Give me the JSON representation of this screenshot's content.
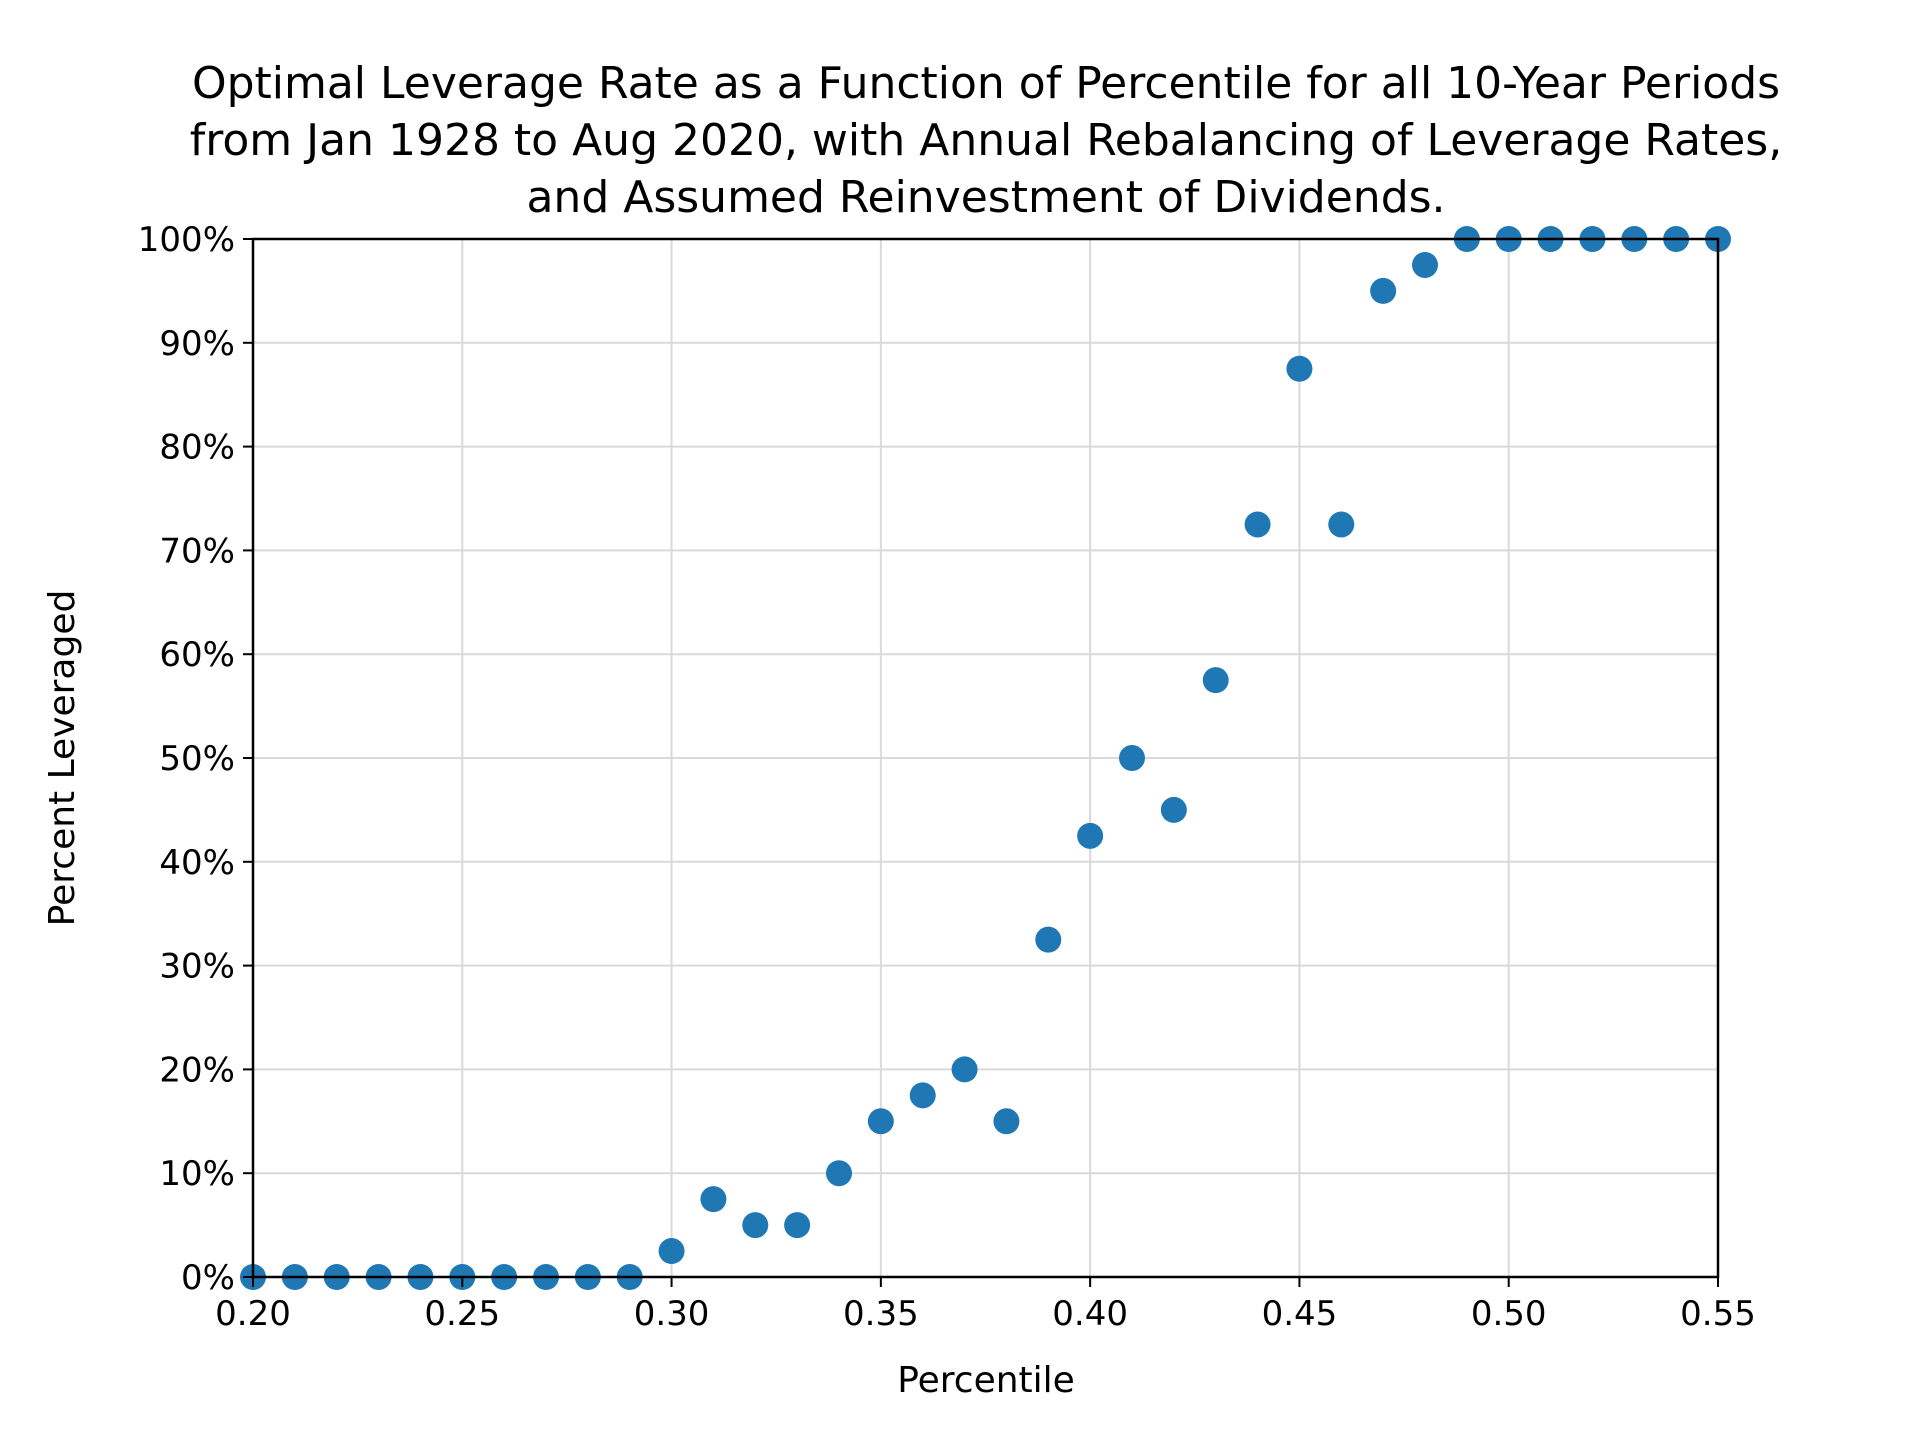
{
  "chart_data": {
    "type": "scatter",
    "title_lines": [
      "Optimal Leverage Rate as a Function of Percentile for all 10-Year Periods",
      "from Jan 1928 to Aug 2020, with Annual Rebalancing of Leverage Rates,",
      "and Assumed Reinvestment of Dividends."
    ],
    "xlabel": "Percentile",
    "ylabel": "Percent Leveraged",
    "xlim": [
      0.2,
      0.55
    ],
    "ylim": [
      0,
      100
    ],
    "grid": true,
    "marker_color": "#1f77b4",
    "xticks": [
      0.2,
      0.25,
      0.3,
      0.35,
      0.4,
      0.45,
      0.5,
      0.55
    ],
    "xtick_labels": [
      "0.20",
      "0.25",
      "0.30",
      "0.35",
      "0.40",
      "0.45",
      "0.50",
      "0.55"
    ],
    "yticks": [
      0,
      10,
      20,
      30,
      40,
      50,
      60,
      70,
      80,
      90,
      100
    ],
    "ytick_labels": [
      "0%",
      "10%",
      "20%",
      "30%",
      "40%",
      "50%",
      "60%",
      "70%",
      "80%",
      "90%",
      "100%"
    ],
    "series": [
      {
        "x": [
          0.2,
          0.21,
          0.22,
          0.23,
          0.24,
          0.25,
          0.26,
          0.27,
          0.28,
          0.29,
          0.3,
          0.31,
          0.32,
          0.33,
          0.34,
          0.35,
          0.36,
          0.37,
          0.38,
          0.39,
          0.4,
          0.41,
          0.42,
          0.43,
          0.44,
          0.45,
          0.46,
          0.47,
          0.48,
          0.49,
          0.5,
          0.51,
          0.52,
          0.53,
          0.54,
          0.55
        ],
        "y": [
          0,
          0,
          0,
          0,
          0,
          0,
          0,
          0,
          0,
          0,
          2.5,
          7.5,
          5,
          5,
          10,
          15,
          17.5,
          20,
          15,
          32.5,
          42.5,
          50,
          45,
          57.5,
          72.5,
          87.5,
          72.5,
          95,
          97.5,
          100,
          100,
          100,
          100,
          100,
          100,
          100
        ]
      }
    ]
  }
}
